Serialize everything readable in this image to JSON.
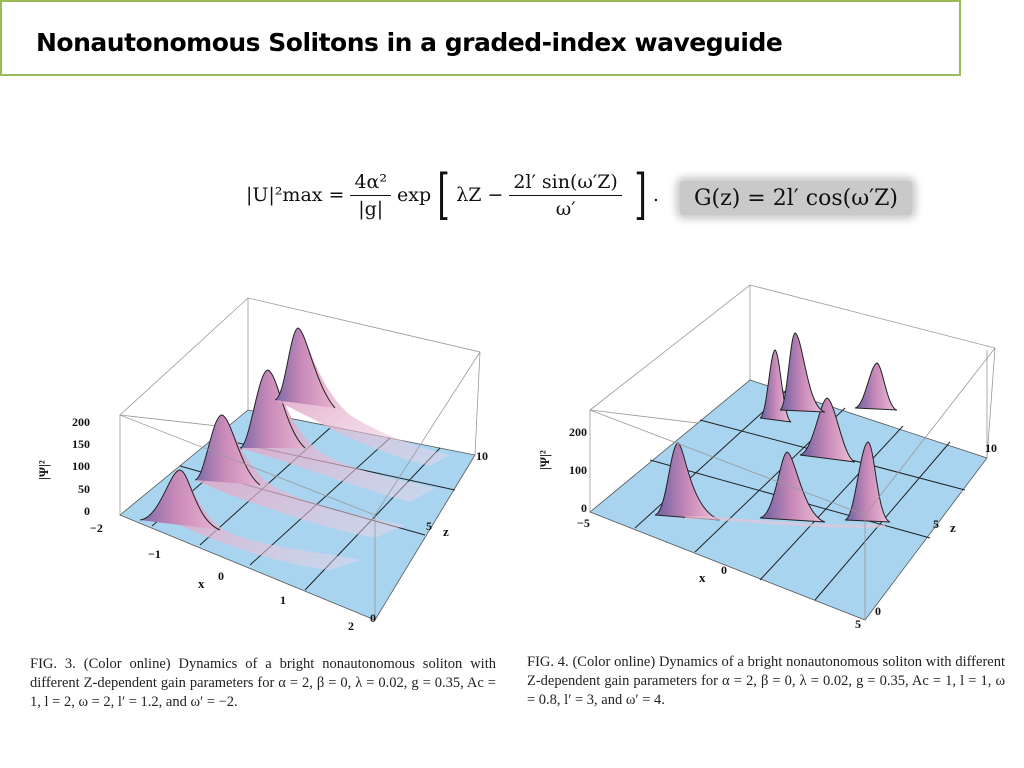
{
  "slide": {
    "title": "Nonautonomous Solitons in a graded-index waveguide"
  },
  "equations": {
    "intensity_lhs": "|U|²max =",
    "intensity_num": "4α²",
    "intensity_den": "|g|",
    "intensity_exp": "exp",
    "intensity_lambda": "λZ −",
    "intensity_inner_num": "2l′ sin(ω′Z)",
    "intensity_inner_den": "ω′",
    "intensity_end": ".",
    "gain": "G(z) = 2l′ cos(ω′Z)"
  },
  "figures": [
    {
      "ylabel": "|Ψ|²",
      "z_axis_label": "z",
      "x_axis_label": "x",
      "psi_ticks": [
        "200",
        "150",
        "100",
        "50",
        "0"
      ],
      "x_ticks": [
        "−2",
        "−1",
        "0",
        "1",
        "2"
      ],
      "z_ticks": [
        "0",
        "5",
        "10"
      ],
      "caption": "FIG. 3. (Color online) Dynamics of a bright nonautonomous soliton with different Z-dependent gain parameters for α = 2, β = 0, λ = 0.02, g = 0.35, Ac = 1, l = 2, ω = 2, l′ = 1.2, and ω′ = −2."
    },
    {
      "ylabel": "|Ψ|²",
      "z_axis_label": "z",
      "x_axis_label": "x",
      "psi_ticks": [
        "200",
        "100",
        "0"
      ],
      "x_ticks": [
        "−5",
        "0",
        "5"
      ],
      "z_ticks": [
        "0",
        "5",
        "10"
      ],
      "caption": "FIG. 4. (Color online) Dynamics of a bright nonautonomous soliton with different Z-dependent gain parameters for α = 2, β = 0, λ = 0.02, g = 0.35, Ac = 1, l = 1, ω = 0.8, l′ = 3, and ω′ = 4."
    }
  ],
  "colors": {
    "title_border": "#9bbb59",
    "floor": "#a8d4f0",
    "peak": "#d98fb5",
    "peak_shadow": "#7b6aa8"
  }
}
